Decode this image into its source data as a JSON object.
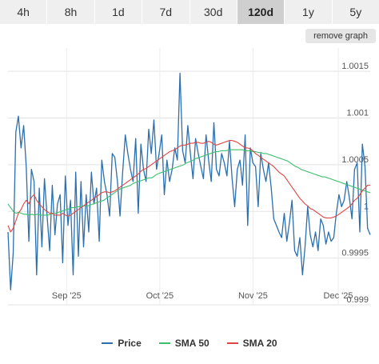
{
  "tabs": [
    {
      "label": "4h",
      "active": false
    },
    {
      "label": "8h",
      "active": false
    },
    {
      "label": "1d",
      "active": false
    },
    {
      "label": "7d",
      "active": false
    },
    {
      "label": "30d",
      "active": false
    },
    {
      "label": "120d",
      "active": true
    },
    {
      "label": "1y",
      "active": false
    },
    {
      "label": "5y",
      "active": false
    }
  ],
  "remove_graph_label": "remove graph",
  "chart_data": {
    "type": "line",
    "ylim": [
      0.999,
      1.00175
    ],
    "yticks": [
      0.999,
      0.9995,
      1,
      1.0005,
      1.001,
      1.0015
    ],
    "ytick_labels": [
      "0.999",
      "0.9995",
      "1",
      "1.0005",
      "1.001",
      "1.0015"
    ],
    "xlim": [
      0,
      136
    ],
    "xticks": [
      {
        "x": 22,
        "label": "Sep '25"
      },
      {
        "x": 57,
        "label": "Oct '25"
      },
      {
        "x": 92,
        "label": "Nov '25"
      },
      {
        "x": 124,
        "label": "Dec '25"
      }
    ],
    "grid": true,
    "legend_position": "bottom",
    "series": [
      {
        "name": "Price",
        "color": "#2b6fae",
        "values": [
          0.99978,
          0.99916,
          0.99955,
          1.00085,
          1.00102,
          1.00068,
          1.00092,
          1.00048,
          0.99968,
          1.00045,
          1.00032,
          0.99932,
          1.00025,
          0.99962,
          1.00035,
          0.99995,
          0.99958,
          1.00028,
          0.99975,
          1.00008,
          1.00018,
          0.99945,
          1.00038,
          0.99985,
          1.00012,
          0.99932,
          1.00042,
          0.99952,
          1.00032,
          0.99962,
          1.00018,
          0.99978,
          1.00042,
          1.00008,
          1.00025,
          0.99968,
          1.00055,
          1.00032,
          1.00018,
          0.99995,
          1.00062,
          1.00058,
          1.00032,
          0.99995,
          1.00042,
          1.00082,
          1.00062,
          1.00045,
          1.00032,
          1.00078,
          0.99998,
          1.00072,
          1.00045,
          1.00032,
          1.00088,
          1.00062,
          1.00098,
          1.00045,
          1.00062,
          1.00082,
          1.00018,
          1.00055,
          1.00032,
          1.00045,
          1.00068,
          1.00055,
          1.00148,
          1.00065,
          1.00052,
          1.00092,
          1.00062,
          1.00035,
          1.00078,
          1.00062,
          1.00048,
          1.00035,
          1.00082,
          1.00055,
          1.00032,
          1.00095,
          1.00045,
          1.00038,
          1.00062,
          1.00052,
          1.00038,
          1.00075,
          1.00035,
          1.00005,
          1.00045,
          1.00055,
          1.00028,
          1.00082,
          0.99985,
          1.00068,
          1.00052,
          1.00048,
          1.00005,
          1.00062,
          1.00045,
          1.00032,
          1.00052,
          1.00025,
          0.99992,
          0.99985,
          0.99978,
          0.99972,
          0.99998,
          0.99968,
          0.99988,
          1.00012,
          0.99958,
          0.99952,
          0.99972,
          0.99932,
          0.99962,
          1.00005,
          0.99975,
          0.99962,
          0.99978,
          0.99958,
          0.99992,
          0.99985,
          0.99965,
          0.99978,
          0.99968,
          0.99972,
          0.99998,
          1.00018,
          1.00005,
          1.00012,
          1.00032,
          1.00015,
          0.99992,
          1.00045,
          1.00052,
          0.99978,
          1.00072,
          1.00048,
          0.99982,
          0.99975
        ]
      },
      {
        "name": "SMA 50",
        "color": "#3dbf6e",
        "values": [
          1.00008,
          1.00004,
          1.0,
          0.99998,
          0.99999,
          0.99998,
          0.99997,
          0.99997,
          0.99996,
          0.99997,
          0.99996,
          0.99997,
          0.99996,
          0.99996,
          0.99996,
          0.99996,
          0.99997,
          0.99998,
          0.99998,
          0.99999,
          1.0,
          1.00001,
          1.00002,
          1.00003,
          1.00004,
          1.00004,
          1.00005,
          1.00005,
          1.00006,
          1.00006,
          1.00006,
          1.00007,
          1.00008,
          1.00009,
          1.0001,
          1.00011,
          1.00012,
          1.00014,
          1.00016,
          1.00018,
          1.0002,
          1.00022,
          1.00024,
          1.00025,
          1.00026,
          1.00027,
          1.00028,
          1.0003,
          1.00031,
          1.00032,
          1.00033,
          1.00034,
          1.00035,
          1.00036,
          1.00036,
          1.00038,
          1.0004,
          1.00041,
          1.00042,
          1.00043,
          1.00044,
          1.00045,
          1.00046,
          1.00047,
          1.00048,
          1.00049,
          1.0005,
          1.00052,
          1.00053,
          1.00054,
          1.00056,
          1.00057,
          1.00058,
          1.00059,
          1.0006,
          1.00061,
          1.00062,
          1.00063,
          1.00064,
          1.00064,
          1.00065,
          1.00065,
          1.00065,
          1.00066,
          1.00066,
          1.00066,
          1.00066,
          1.00066,
          1.00066,
          1.00065,
          1.00065,
          1.00065,
          1.00064,
          1.00064,
          1.00063,
          1.00063,
          1.00062,
          1.00062,
          1.00061,
          1.0006,
          1.00059,
          1.00058,
          1.00057,
          1.00056,
          1.00055,
          1.00054,
          1.00052,
          1.0005,
          1.00048,
          1.00047,
          1.00045,
          1.00044,
          1.00043,
          1.00042,
          1.00041,
          1.0004,
          1.00039,
          1.00038,
          1.00037,
          1.00037,
          1.00036,
          1.00035,
          1.00034,
          1.00033,
          1.00032,
          1.00031,
          1.0003,
          1.00029,
          1.00028,
          1.00027,
          1.00026,
          1.00025,
          1.00024,
          1.00023,
          1.00022,
          1.00021,
          1.0002
        ]
      },
      {
        "name": "SMA 20",
        "color": "#e04545",
        "values": [
          0.99985,
          0.99978,
          0.99982,
          0.9999,
          0.99998,
          1.00002,
          1.00008,
          1.00012,
          1.00008,
          1.00015,
          1.00018,
          1.00012,
          1.00008,
          1.00005,
          1.00002,
          1.0,
          0.99998,
          0.99998,
          0.99996,
          0.99996,
          0.99996,
          0.99998,
          0.99996,
          0.99995,
          0.99996,
          0.99998,
          1.0,
          1.00002,
          1.00004,
          1.00006,
          1.00008,
          1.0001,
          1.00012,
          1.00014,
          1.00016,
          1.00018,
          1.0002,
          1.00021,
          1.00021,
          1.0002,
          1.00021,
          1.00022,
          1.00024,
          1.00026,
          1.00028,
          1.0003,
          1.00032,
          1.00034,
          1.00036,
          1.00038,
          1.0004,
          1.00043,
          1.00045,
          1.00046,
          1.00048,
          1.0005,
          1.00052,
          1.00054,
          1.00056,
          1.00058,
          1.0006,
          1.00062,
          1.00064,
          1.00065,
          1.00066,
          1.00068,
          1.0007,
          1.00071,
          1.00071,
          1.00072,
          1.00073,
          1.00073,
          1.00074,
          1.00074,
          1.00073,
          1.00073,
          1.00074,
          1.00075,
          1.00074,
          1.00072,
          1.00071,
          1.00072,
          1.00073,
          1.00074,
          1.00075,
          1.00076,
          1.00076,
          1.00075,
          1.00074,
          1.00072,
          1.0007,
          1.00068,
          1.00068,
          1.00067,
          1.00065,
          1.00062,
          1.0006,
          1.00058,
          1.00056,
          1.00054,
          1.00052,
          1.0005,
          1.00048,
          1.00045,
          1.00042,
          1.0004,
          1.00038,
          1.00034,
          1.0003,
          1.00026,
          1.00022,
          1.00018,
          1.00014,
          1.00011,
          1.00008,
          1.00006,
          1.00003,
          1.00002,
          1.0,
          0.99998,
          0.99996,
          0.99994,
          0.99993,
          0.99993,
          0.99993,
          0.99994,
          0.99995,
          0.99997,
          0.99999,
          1.00001,
          1.00003,
          1.00005,
          1.00008,
          1.00012,
          1.00014,
          1.00018,
          1.00022,
          1.00025,
          1.00028,
          1.00028
        ]
      }
    ]
  }
}
